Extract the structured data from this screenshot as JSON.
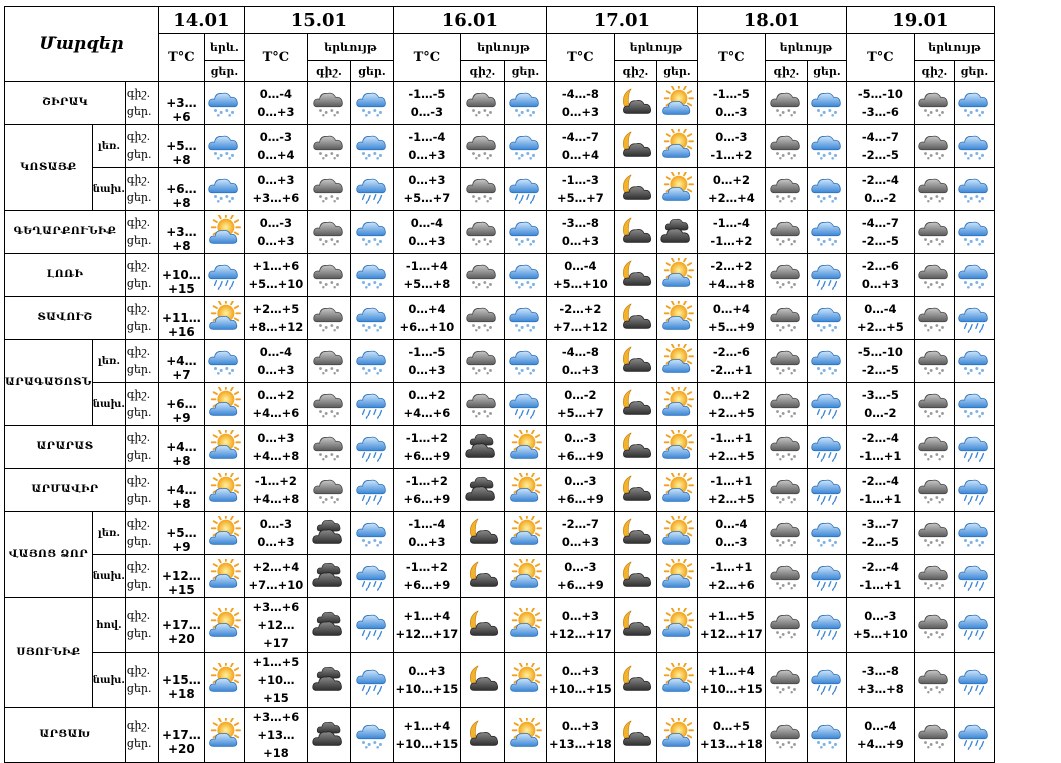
{
  "title": "Մարզեր",
  "dates": [
    "14.01",
    "15.01",
    "16.01",
    "17.01",
    "18.01",
    "19.01"
  ],
  "headers": {
    "temp": "T°C",
    "event_short": "երև.",
    "event": "երևույթ",
    "night": "գիշ.",
    "day": "ցեր.",
    "day_full": "ցեր."
  },
  "row_labels": {
    "night": "գիշ.",
    "day": "ցեր."
  },
  "rows": [
    {
      "region": "ՇԻՐԱԿ",
      "sub": "",
      "d14": "+3…+6",
      "i14": "snow",
      "days": [
        {
          "n": "0…-4",
          "d": "0…+3",
          "in": "snowcloud",
          "id": "snow"
        },
        {
          "n": "-1…-5",
          "d": "0…-3",
          "in": "snowcloud",
          "id": "snow"
        },
        {
          "n": "-4…-8",
          "d": "0…+3",
          "in": "moon",
          "id": "sun"
        },
        {
          "n": "-1…-5",
          "d": "0…-3",
          "in": "snowcloud",
          "id": "snow"
        },
        {
          "n": "-5…-10",
          "d": "-3…-6",
          "in": "snowcloud",
          "id": "snow"
        }
      ]
    },
    {
      "region": "ԿՈՏԱՅՔ",
      "sub": "լեռ.",
      "d14": "+5…+8",
      "i14": "snow",
      "days": [
        {
          "n": "0…-3",
          "d": "0…+4",
          "in": "snowcloud",
          "id": "snow"
        },
        {
          "n": "-1…-4",
          "d": "0…+3",
          "in": "snowcloud",
          "id": "snow"
        },
        {
          "n": "-4…-7",
          "d": "0…+4",
          "in": "moon",
          "id": "sun"
        },
        {
          "n": "0…-3",
          "d": "-1…+2",
          "in": "snowcloud",
          "id": "snow"
        },
        {
          "n": "-4…-7",
          "d": "-2…-5",
          "in": "snowcloud",
          "id": "snow"
        }
      ]
    },
    {
      "region": "",
      "sub": "նախ.",
      "d14": "+6…+8",
      "i14": "snow",
      "days": [
        {
          "n": "0…+3",
          "d": "+3…+6",
          "in": "snowcloud",
          "id": "rain"
        },
        {
          "n": "0…+3",
          "d": "+5…+7",
          "in": "snowcloud",
          "id": "rain"
        },
        {
          "n": "-1…-3",
          "d": "+5…+7",
          "in": "moon",
          "id": "sun"
        },
        {
          "n": "0…+2",
          "d": "+2…+4",
          "in": "snowcloud",
          "id": "snow"
        },
        {
          "n": "-2…-4",
          "d": "0…-2",
          "in": "snowcloud",
          "id": "snow"
        }
      ]
    },
    {
      "region": "ԳԵՂԱՐՔՈՒՆԻՔ",
      "sub": "",
      "d14": "+3…+8",
      "i14": "sun",
      "days": [
        {
          "n": "0…-3",
          "d": "0…+3",
          "in": "snowcloud",
          "id": "snow"
        },
        {
          "n": "0…-4",
          "d": "0…+3",
          "in": "snowcloud",
          "id": "snow"
        },
        {
          "n": "-3…-8",
          "d": "0…+3",
          "in": "moon",
          "id": "cloud"
        },
        {
          "n": "-1…-4",
          "d": "-1…+2",
          "in": "snowcloud",
          "id": "snow"
        },
        {
          "n": "-4…-7",
          "d": "-2…-5",
          "in": "snowcloud",
          "id": "snow"
        }
      ]
    },
    {
      "region": "ԼՈՌԻ",
      "sub": "",
      "d14": "+10…+15",
      "i14": "rain",
      "days": [
        {
          "n": "+1…+6",
          "d": "+5…+10",
          "in": "snowcloud",
          "id": "snow"
        },
        {
          "n": "-1…+4",
          "d": "+5…+8",
          "in": "snowcloud",
          "id": "snow"
        },
        {
          "n": "0…-4",
          "d": "+5…+10",
          "in": "moon",
          "id": "sun"
        },
        {
          "n": "-2…+2",
          "d": "+4…+8",
          "in": "snowcloud",
          "id": "rain"
        },
        {
          "n": "-2…-6",
          "d": "0…+3",
          "in": "snowcloud",
          "id": "snow"
        }
      ]
    },
    {
      "region": "ՏԱՎՈՒՇ",
      "sub": "",
      "d14": "+11…+16",
      "i14": "sun",
      "days": [
        {
          "n": "+2…+5",
          "d": "+8…+12",
          "in": "snowcloud",
          "id": "snow"
        },
        {
          "n": "0…+4",
          "d": "+6…+10",
          "in": "snowcloud",
          "id": "snow"
        },
        {
          "n": "-2…+2",
          "d": "+7…+12",
          "in": "moon",
          "id": "sun"
        },
        {
          "n": "0…+4",
          "d": "+5…+9",
          "in": "snowcloud",
          "id": "snow"
        },
        {
          "n": "0…-4",
          "d": "+2…+5",
          "in": "snowcloud",
          "id": "rain"
        }
      ]
    },
    {
      "region": "ԱՐԱԳԱԾՈՏՆ",
      "sub": "լեռ.",
      "d14": "+4…+7",
      "i14": "snow",
      "days": [
        {
          "n": "0…-4",
          "d": "0…+3",
          "in": "snowcloud",
          "id": "snow"
        },
        {
          "n": "-1…-5",
          "d": "0…+3",
          "in": "snowcloud",
          "id": "snow"
        },
        {
          "n": "-4…-8",
          "d": "0…+3",
          "in": "moon",
          "id": "sun"
        },
        {
          "n": "-2…-6",
          "d": "-2…+1",
          "in": "snowcloud",
          "id": "snow"
        },
        {
          "n": "-5…-10",
          "d": "-2…-5",
          "in": "snowcloud",
          "id": "snow"
        }
      ]
    },
    {
      "region": "",
      "sub": "նախ.",
      "d14": "+6…+9",
      "i14": "sun",
      "days": [
        {
          "n": "0…+2",
          "d": "+4…+6",
          "in": "snowcloud",
          "id": "rain"
        },
        {
          "n": "0…+2",
          "d": "+4…+6",
          "in": "snowcloud",
          "id": "rain"
        },
        {
          "n": "0…-2",
          "d": "+5…+7",
          "in": "moon",
          "id": "sun"
        },
        {
          "n": "0…+2",
          "d": "+2…+5",
          "in": "snowcloud",
          "id": "rain"
        },
        {
          "n": "-3…-5",
          "d": "0…-2",
          "in": "snowcloud",
          "id": "snow"
        }
      ]
    },
    {
      "region": "ԱՐԱՐԱՏ",
      "sub": "",
      "d14": "+4…+8",
      "i14": "sun",
      "days": [
        {
          "n": "0…+3",
          "d": "+4…+8",
          "in": "snowcloud",
          "id": "rain"
        },
        {
          "n": "-1…+2",
          "d": "+6…+9",
          "in": "cloud",
          "id": "sun"
        },
        {
          "n": "0…-3",
          "d": "+6…+9",
          "in": "moon",
          "id": "sun"
        },
        {
          "n": "-1…+1",
          "d": "+2…+5",
          "in": "snowcloud",
          "id": "rain"
        },
        {
          "n": "-2…-4",
          "d": "-1…+1",
          "in": "snowcloud",
          "id": "rain"
        }
      ]
    },
    {
      "region": "ԱՐՄԱՎԻՐ",
      "sub": "",
      "d14": "+4…+8",
      "i14": "sun",
      "days": [
        {
          "n": "-1…+2",
          "d": "+4…+8",
          "in": "snowcloud",
          "id": "rain"
        },
        {
          "n": "-1…+2",
          "d": "+6…+9",
          "in": "cloud",
          "id": "sun"
        },
        {
          "n": "0…-3",
          "d": "+6…+9",
          "in": "moon",
          "id": "sun"
        },
        {
          "n": "-1…+1",
          "d": "+2…+5",
          "in": "snowcloud",
          "id": "rain"
        },
        {
          "n": "-2…-4",
          "d": "-1…+1",
          "in": "snowcloud",
          "id": "rain"
        }
      ]
    },
    {
      "region": "ՎԱՅՈՑ ՁՈՐ",
      "sub": "լեռ.",
      "d14": "+5…+9",
      "i14": "sun",
      "days": [
        {
          "n": "0…-3",
          "d": "0…+3",
          "in": "cloud",
          "id": "snow"
        },
        {
          "n": "-1…-4",
          "d": "0…+3",
          "in": "moon",
          "id": "sun"
        },
        {
          "n": "-2…-7",
          "d": "0…+3",
          "in": "moon",
          "id": "sun"
        },
        {
          "n": "0…-4",
          "d": "0…-3",
          "in": "snowcloud",
          "id": "snow"
        },
        {
          "n": "-3…-7",
          "d": "-2…-5",
          "in": "snowcloud",
          "id": "snow"
        }
      ]
    },
    {
      "region": "",
      "sub": "նախ.",
      "d14": "+12…+15",
      "i14": "sun",
      "days": [
        {
          "n": "+2…+4",
          "d": "+7…+10",
          "in": "cloud",
          "id": "rain"
        },
        {
          "n": "-1…+2",
          "d": "+6…+9",
          "in": "moon",
          "id": "sun"
        },
        {
          "n": "0…-3",
          "d": "+6…+9",
          "in": "moon",
          "id": "sun"
        },
        {
          "n": "-1…+1",
          "d": "+2…+6",
          "in": "snowcloud",
          "id": "rain"
        },
        {
          "n": "-2…-4",
          "d": "-1…+1",
          "in": "snowcloud",
          "id": "rain"
        }
      ]
    },
    {
      "region": "ՍՅՈՒՆԻՔ",
      "sub": "հով.",
      "d14": "+17…+20",
      "i14": "sun",
      "days": [
        {
          "n": "+3…+6",
          "d": "+12…+17",
          "in": "cloud",
          "id": "rain"
        },
        {
          "n": "+1…+4",
          "d": "+12…+17",
          "in": "moon",
          "id": "sun"
        },
        {
          "n": "0…+3",
          "d": "+12…+17",
          "in": "moon",
          "id": "sun"
        },
        {
          "n": "+1…+5",
          "d": "+12…+17",
          "in": "snowcloud",
          "id": "rain"
        },
        {
          "n": "0…-3",
          "d": "+5…+10",
          "in": "snowcloud",
          "id": "rain"
        }
      ]
    },
    {
      "region": "",
      "sub": "նախ.",
      "d14": "+15…+18",
      "i14": "sun",
      "days": [
        {
          "n": "+1…+5",
          "d": "+10…+15",
          "in": "cloud",
          "id": "rain"
        },
        {
          "n": "0…+3",
          "d": "+10…+15",
          "in": "moon",
          "id": "sun"
        },
        {
          "n": "0…+3",
          "d": "+10…+15",
          "in": "moon",
          "id": "sun"
        },
        {
          "n": "+1…+4",
          "d": "+10…+15",
          "in": "snowcloud",
          "id": "rain"
        },
        {
          "n": "-3…-8",
          "d": "+3…+8",
          "in": "snowcloud",
          "id": "rain"
        }
      ]
    },
    {
      "region": "ԱՐՑԱԽ",
      "sub": "",
      "d14": "+17…+20",
      "i14": "sun",
      "days": [
        {
          "n": "+3…+6",
          "d": "+13…+18",
          "in": "cloud",
          "id": "snow"
        },
        {
          "n": "+1…+4",
          "d": "+10…+15",
          "in": "moon",
          "id": "sun"
        },
        {
          "n": "0…+3",
          "d": "+13…+18",
          "in": "moon",
          "id": "sun"
        },
        {
          "n": "0…+5",
          "d": "+13…+18",
          "in": "snowcloud",
          "id": "snow"
        },
        {
          "n": "0…-4",
          "d": "+4…+9",
          "in": "snowcloud",
          "id": "rain"
        }
      ]
    }
  ]
}
